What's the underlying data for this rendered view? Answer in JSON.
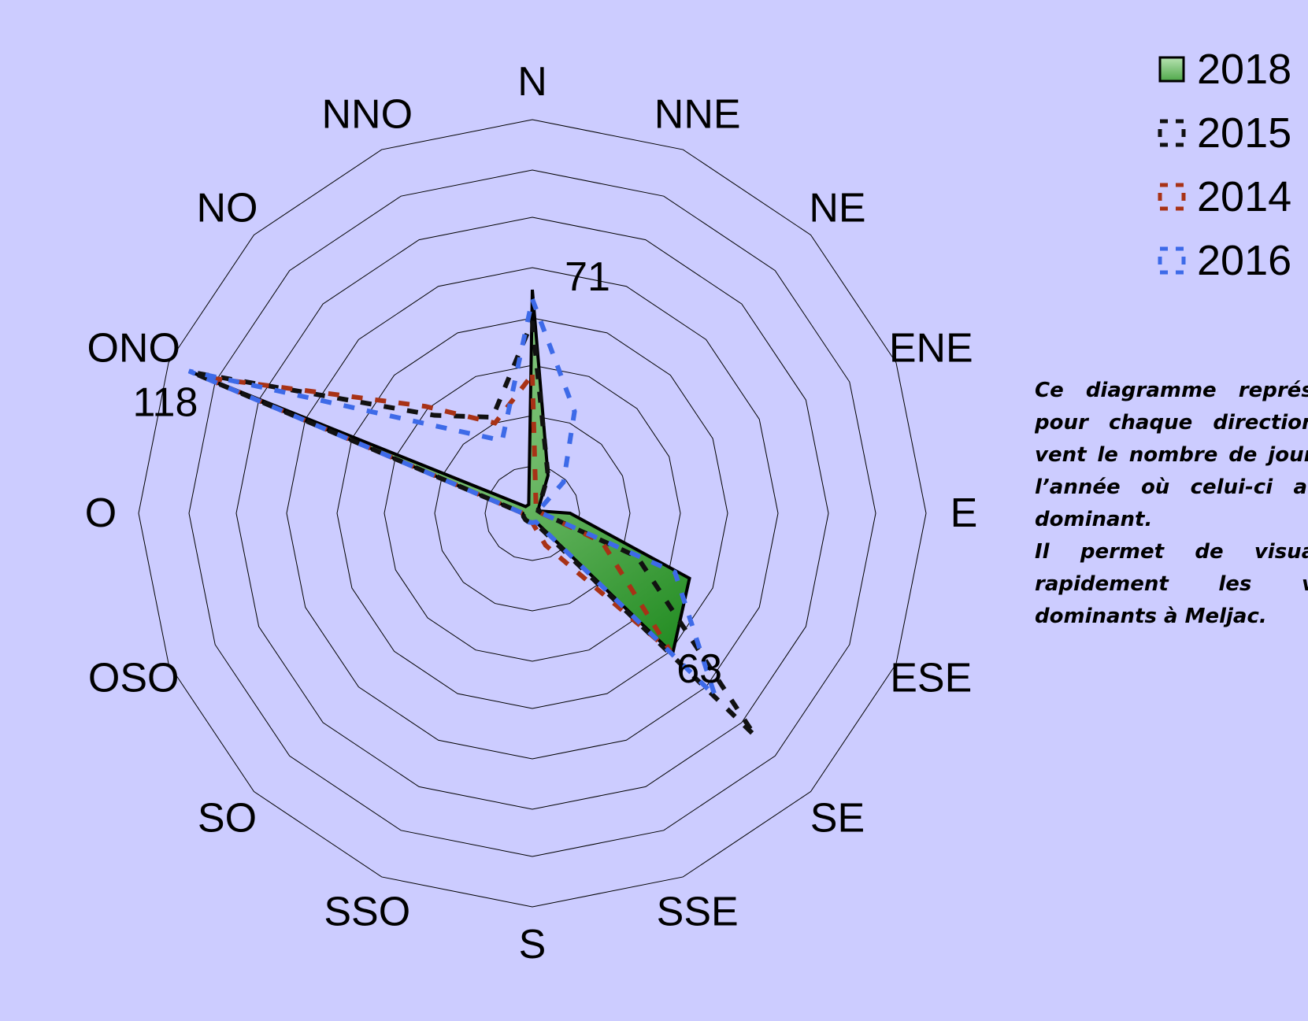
{
  "chart_data": {
    "type": "radar",
    "directions": [
      "N",
      "NNE",
      "NE",
      "ENE",
      "E",
      "ESE",
      "SE",
      "SSE",
      "S",
      "SSO",
      "SO",
      "OSO",
      "O",
      "ONO",
      "NO",
      "NNO"
    ],
    "rmax": 125,
    "grid_rings": [
      15,
      31,
      47,
      62,
      78,
      94,
      109,
      125
    ],
    "series": [
      {
        "name": "2018",
        "style": "filled",
        "color": "#7cc47c",
        "edge": "#000000",
        "values": [
          71,
          13,
          3,
          2,
          12,
          54,
          63,
          3,
          3,
          3,
          3,
          3,
          3,
          118,
          3,
          3
        ]
      },
      {
        "name": "2015",
        "style": "dashed",
        "color": "#111111",
        "values": [
          61,
          13,
          3,
          2,
          3,
          36,
          100,
          4,
          3,
          3,
          3,
          3,
          3,
          117,
          44,
          33
        ]
      },
      {
        "name": "2014",
        "style": "dashed",
        "color": "#a83216",
        "values": [
          44,
          3,
          3,
          2,
          3,
          24,
          62,
          11,
          3,
          3,
          3,
          3,
          3,
          113,
          48,
          31
        ]
      },
      {
        "name": "2016",
        "style": "dashed",
        "color": "#3d6ae8",
        "values": [
          68,
          35,
          14,
          2,
          3,
          49,
          82,
          3,
          3,
          3,
          3,
          3,
          3,
          118,
          38,
          25
        ]
      }
    ],
    "data_labels": [
      {
        "series": "2018",
        "direction": "N",
        "text": "71"
      },
      {
        "series": "2018",
        "direction": "SE",
        "text": "63"
      },
      {
        "series": "2018",
        "direction": "ONO",
        "text": "118"
      }
    ],
    "legend_position": "top-right"
  },
  "note": "Ce diagramme représente pour chaque direction de vent le nombre de jours de l’année où celui-ci a été dominant.\nIl permet de visualiser rapidement les vents dominants à Meljac."
}
